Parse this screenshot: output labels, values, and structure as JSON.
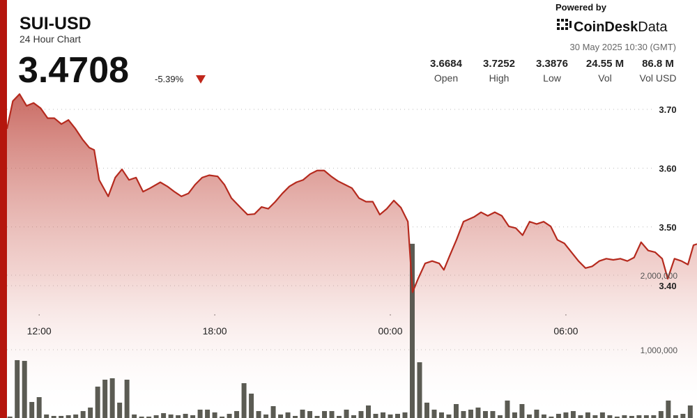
{
  "header": {
    "symbol": "SUI-USD",
    "subtitle": "24 Hour Chart",
    "price": "3.4708",
    "change": "-5.39%",
    "powered": "Powered by",
    "brand": "CoinDesk",
    "brand_suffix": "Data",
    "date": "30 May 2025 10:30 (GMT)",
    "stats": [
      {
        "value": "3.6684",
        "label": "Open"
      },
      {
        "value": "3.7252",
        "label": "High"
      },
      {
        "value": "3.3876",
        "label": "Low"
      },
      {
        "value": "24.55 M",
        "label": "Vol"
      },
      {
        "value": "86.8 M",
        "label": "Vol USD"
      }
    ]
  },
  "chart_data": {
    "type": "line",
    "xlim": [
      10.9,
      34.48
    ],
    "xticks": [
      {
        "value": 12,
        "label": "12:00"
      },
      {
        "value": 18,
        "label": "18:00"
      },
      {
        "value": 24,
        "label": "00:00"
      },
      {
        "value": 30,
        "label": "06:00"
      }
    ],
    "ylim": [
      3.175,
      3.732
    ],
    "yticks": [
      {
        "value": 3.4,
        "label": "3.40"
      },
      {
        "value": 3.5,
        "label": "3.50"
      },
      {
        "value": 3.6,
        "label": "3.60"
      },
      {
        "value": 3.7,
        "label": "3.70"
      }
    ],
    "y2lim": [
      84000,
      4476000
    ],
    "y2ticks": [
      {
        "value": 1000000,
        "label": "1,000,000"
      },
      {
        "value": 2000000,
        "label": "2,000,000"
      }
    ],
    "grid": true,
    "series": [
      {
        "type": "area",
        "color": "#b52a1e",
        "x": [
          10.9,
          11.1,
          11.33,
          11.57,
          11.81,
          12.05,
          12.29,
          12.52,
          12.76,
          13.0,
          13.24,
          13.48,
          13.71,
          13.88,
          14.05,
          14.36,
          14.6,
          14.83,
          15.07,
          15.31,
          15.55,
          15.79,
          16.14,
          16.38,
          16.62,
          16.86,
          17.1,
          17.33,
          17.57,
          17.81,
          18.1,
          18.33,
          18.57,
          18.88,
          19.12,
          19.36,
          19.6,
          19.83,
          20.07,
          20.31,
          20.55,
          20.79,
          21.02,
          21.26,
          21.5,
          21.74,
          21.98,
          22.21,
          22.45,
          22.69,
          22.93,
          23.17,
          23.4,
          23.64,
          23.88,
          24.12,
          24.36,
          24.6,
          24.76,
          24.95,
          25.19,
          25.43,
          25.67,
          25.83,
          26.02,
          26.26,
          26.5,
          26.86,
          27.1,
          27.33,
          27.57,
          27.81,
          28.05,
          28.29,
          28.52,
          28.76,
          29.0,
          29.24,
          29.48,
          29.71,
          29.95,
          30.19,
          30.43,
          30.67,
          30.9,
          31.14,
          31.38,
          31.62,
          31.86,
          32.1,
          32.33,
          32.57,
          32.81,
          33.05,
          33.29,
          33.48,
          33.71,
          33.95,
          34.17,
          34.36,
          34.48
        ],
        "values": [
          3.667,
          3.714,
          3.726,
          3.706,
          3.711,
          3.702,
          3.685,
          3.685,
          3.675,
          3.682,
          3.667,
          3.649,
          3.635,
          3.631,
          3.58,
          3.552,
          3.584,
          3.598,
          3.58,
          3.584,
          3.56,
          3.566,
          3.576,
          3.569,
          3.56,
          3.552,
          3.557,
          3.572,
          3.584,
          3.588,
          3.586,
          3.572,
          3.549,
          3.533,
          3.521,
          3.522,
          3.534,
          3.531,
          3.543,
          3.557,
          3.569,
          3.576,
          3.58,
          3.59,
          3.596,
          3.596,
          3.586,
          3.578,
          3.572,
          3.566,
          3.549,
          3.543,
          3.543,
          3.521,
          3.531,
          3.545,
          3.533,
          3.509,
          3.389,
          3.412,
          3.438,
          3.442,
          3.438,
          3.427,
          3.45,
          3.478,
          3.509,
          3.517,
          3.525,
          3.519,
          3.525,
          3.519,
          3.501,
          3.498,
          3.486,
          3.509,
          3.505,
          3.509,
          3.501,
          3.478,
          3.472,
          3.457,
          3.442,
          3.43,
          3.433,
          3.442,
          3.446,
          3.444,
          3.446,
          3.442,
          3.448,
          3.474,
          3.46,
          3.457,
          3.446,
          3.412,
          3.446,
          3.442,
          3.436,
          3.469,
          3.471
        ]
      },
      {
        "type": "bar",
        "axis": "y2",
        "color": "#5b5b53",
        "x": [
          11,
          11.25,
          11.5,
          11.75,
          12,
          12.25,
          12.5,
          12.75,
          13,
          13.25,
          13.5,
          13.75,
          14,
          14.25,
          14.5,
          14.75,
          15,
          15.25,
          15.5,
          15.75,
          16,
          16.25,
          16.5,
          16.75,
          17,
          17.25,
          17.5,
          17.75,
          18,
          18.25,
          18.5,
          18.75,
          19,
          19.25,
          19.5,
          19.75,
          20,
          20.25,
          20.5,
          20.75,
          21,
          21.25,
          21.5,
          21.75,
          22,
          22.25,
          22.5,
          22.75,
          23,
          23.25,
          23.5,
          23.75,
          24,
          24.25,
          24.5,
          24.75,
          25,
          25.25,
          25.5,
          25.75,
          26,
          26.25,
          26.5,
          26.75,
          27,
          27.25,
          27.5,
          27.75,
          28,
          28.25,
          28.5,
          28.75,
          29,
          29.25,
          29.5,
          29.75,
          30,
          30.25,
          30.5,
          30.75,
          31,
          31.25,
          31.5,
          31.75,
          32,
          32.25,
          32.5,
          32.75,
          33,
          33.25,
          33.5,
          33.75,
          34,
          34.25
        ],
        "values": [
          103000,
          860000,
          850000,
          299000,
          364000,
          131000,
          112000,
          112000,
          121000,
          131000,
          177000,
          224000,
          505000,
          598000,
          617000,
          290000,
          598000,
          131000,
          103000,
          103000,
          121000,
          149000,
          131000,
          121000,
          140000,
          121000,
          196000,
          196000,
          159000,
          103000,
          140000,
          177000,
          551000,
          411000,
          177000,
          131000,
          243000,
          131000,
          159000,
          112000,
          196000,
          177000,
          112000,
          177000,
          177000,
          112000,
          196000,
          121000,
          177000,
          252000,
          140000,
          159000,
          131000,
          140000,
          159000,
          2421000,
          832000,
          290000,
          196000,
          159000,
          131000,
          271000,
          177000,
          196000,
          224000,
          177000,
          177000,
          121000,
          318000,
          159000,
          271000,
          131000,
          196000,
          131000,
          103000,
          140000,
          159000,
          177000,
          121000,
          159000,
          121000,
          159000,
          121000,
          103000,
          121000,
          112000,
          121000,
          121000,
          121000,
          177000,
          318000,
          121000,
          140000,
          252000
        ]
      }
    ]
  }
}
